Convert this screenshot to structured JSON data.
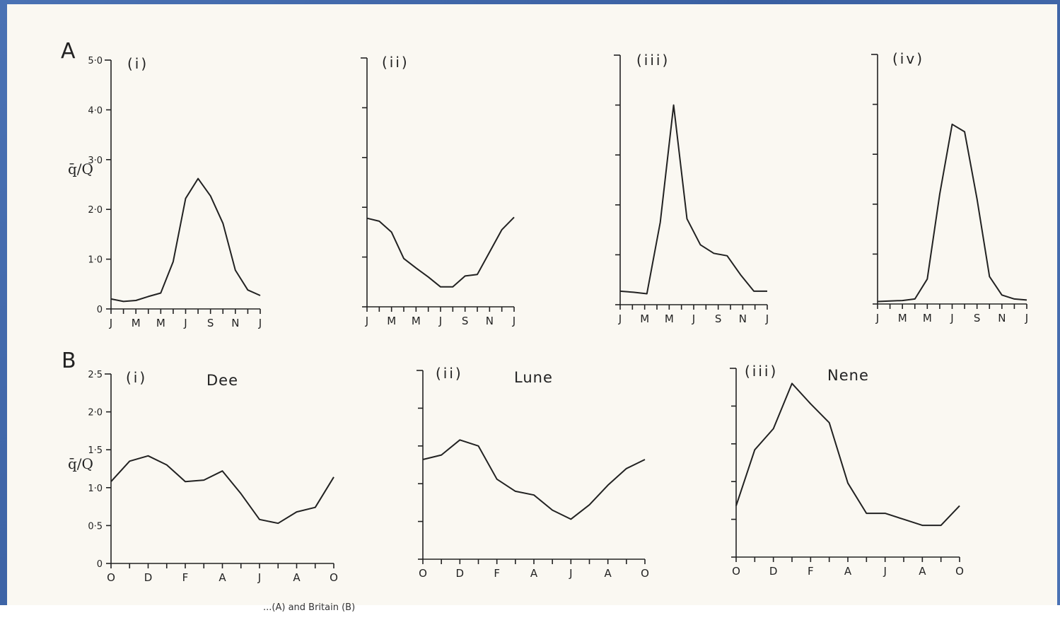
{
  "caption": "...(A) and Britain (B)",
  "colors": {
    "background": "#3f67a8",
    "paper": "#faf8f2",
    "ink": "#222222"
  },
  "chart_data": [
    {
      "type": "line",
      "panel": "A",
      "subplot": "(i)",
      "title": "",
      "ylabel": "q̄/Q",
      "ylim": [
        0,
        5.0
      ],
      "ytick_labels": [
        "0",
        "1·0",
        "2·0",
        "3·0",
        "4·0",
        "5·0"
      ],
      "x_tick_labels": [
        "J",
        "M",
        "M",
        "J",
        "S",
        "N",
        "J"
      ],
      "series": [
        {
          "values": [
            0.2,
            0.15,
            0.17,
            0.25,
            0.32,
            0.95,
            2.22,
            2.62,
            2.27,
            1.72,
            0.78,
            0.38,
            0.27
          ]
        }
      ]
    },
    {
      "type": "line",
      "panel": "A",
      "subplot": "(ii)",
      "title": "",
      "ylim": [
        0,
        5.0
      ],
      "x_tick_labels": [
        "J",
        "M",
        "M",
        "J",
        "S",
        "N",
        "J"
      ],
      "series": [
        {
          "values": [
            1.78,
            1.72,
            1.5,
            0.97,
            0.78,
            0.6,
            0.4,
            0.4,
            0.62,
            0.65,
            1.1,
            1.55,
            1.8
          ]
        }
      ]
    },
    {
      "type": "line",
      "panel": "A",
      "subplot": "(iii)",
      "title": "",
      "ylim": [
        0,
        5.0
      ],
      "x_tick_labels": [
        "J",
        "M",
        "M",
        "J",
        "S",
        "N",
        "J"
      ],
      "series": [
        {
          "values": [
            0.27,
            0.25,
            0.22,
            1.65,
            4.0,
            1.72,
            1.2,
            1.03,
            0.98,
            0.6,
            0.27,
            0.27
          ]
        }
      ]
    },
    {
      "type": "line",
      "panel": "A",
      "subplot": "(iv)",
      "title": "",
      "ylim": [
        0,
        5.0
      ],
      "x_tick_labels": [
        "J",
        "M",
        "M",
        "J",
        "S",
        "N",
        "J"
      ],
      "series": [
        {
          "values": [
            0.05,
            0.06,
            0.07,
            0.1,
            0.5,
            2.2,
            3.6,
            3.45,
            2.1,
            0.55,
            0.18,
            0.1,
            0.08
          ]
        }
      ]
    },
    {
      "type": "line",
      "panel": "B",
      "subplot": "(i)",
      "title": "Dee",
      "ylabel": "q̄/Q",
      "ylim": [
        0,
        2.5
      ],
      "ytick_labels": [
        "0",
        "0·5",
        "1·0",
        "1·5",
        "2·0",
        "2·5"
      ],
      "x_tick_labels": [
        "O",
        "D",
        "F",
        "A",
        "J",
        "A",
        "O"
      ],
      "series": [
        {
          "values": [
            1.08,
            1.35,
            1.42,
            1.3,
            1.08,
            1.1,
            1.22,
            0.92,
            0.58,
            0.53,
            0.68,
            0.74,
            1.14
          ]
        }
      ]
    },
    {
      "type": "line",
      "panel": "B",
      "subplot": "(ii)",
      "title": "Lune",
      "ylim": [
        0,
        2.5
      ],
      "x_tick_labels": [
        "O",
        "D",
        "F",
        "A",
        "J",
        "A",
        "O"
      ],
      "series": [
        {
          "values": [
            1.32,
            1.38,
            1.58,
            1.5,
            1.06,
            0.9,
            0.85,
            0.65,
            0.53,
            0.72,
            0.98,
            1.2,
            1.32
          ]
        }
      ]
    },
    {
      "type": "line",
      "panel": "B",
      "subplot": "(iii)",
      "title": "Nene",
      "ylim": [
        0,
        2.5
      ],
      "x_tick_labels": [
        "O",
        "D",
        "F",
        "A",
        "J",
        "A",
        "O"
      ],
      "series": [
        {
          "values": [
            0.68,
            1.42,
            1.7,
            2.3,
            2.03,
            1.78,
            0.98,
            0.58,
            0.58,
            0.5,
            0.42,
            0.42,
            0.68
          ]
        }
      ]
    }
  ]
}
